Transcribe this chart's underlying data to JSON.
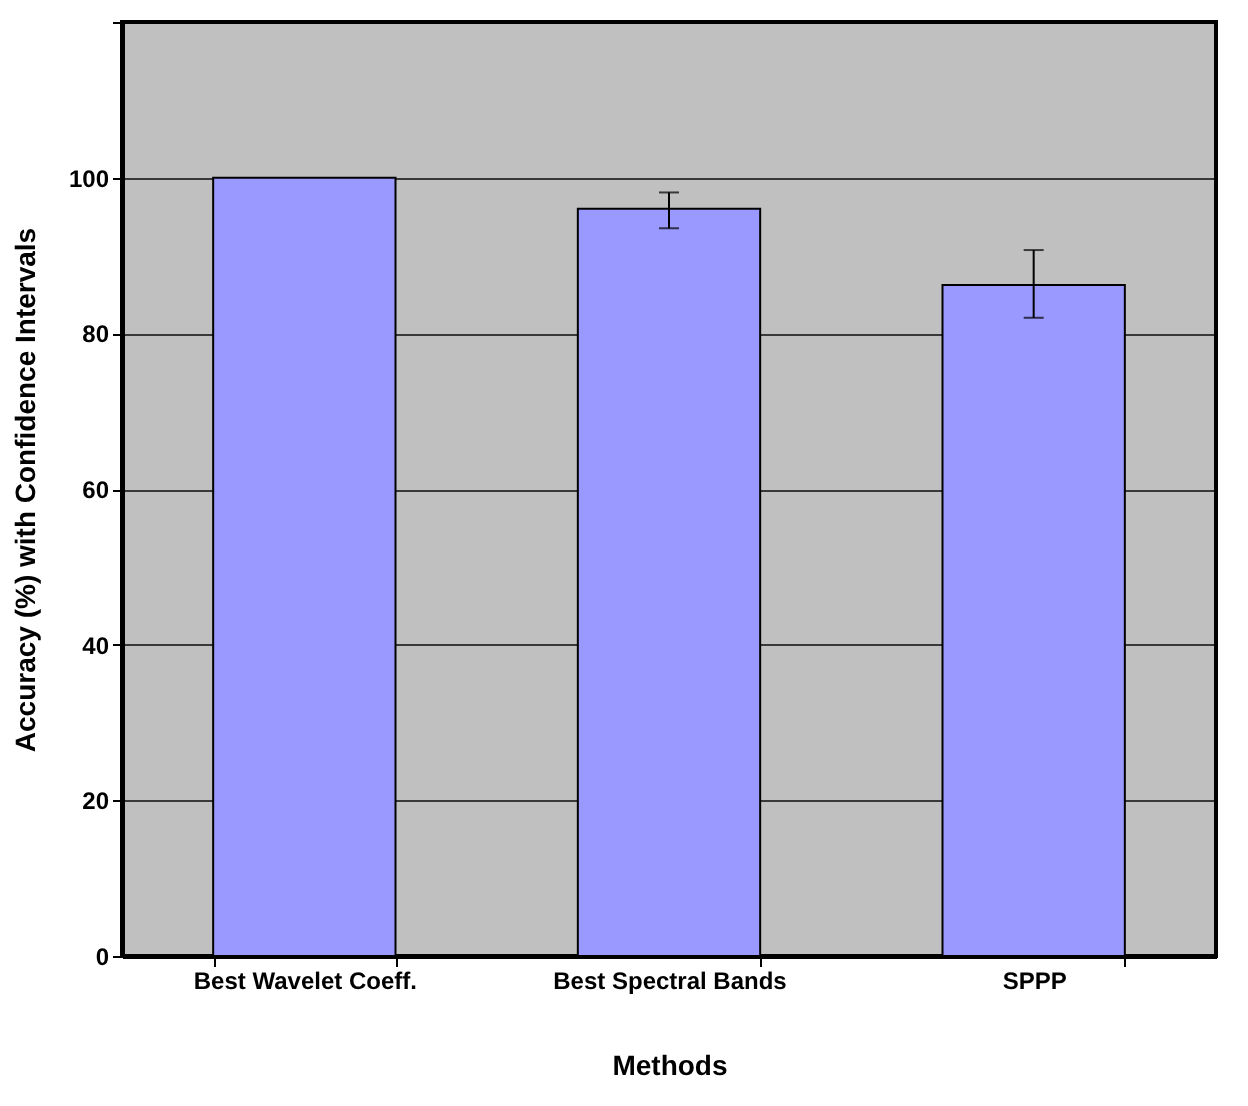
{
  "chart_data": {
    "type": "bar",
    "xlabel": "Methods",
    "ylabel": "Accuracy (%) with Confidence Intervals",
    "categories": [
      "Best Wavelet Coeff.",
      "Best Spectral Bands",
      "SPPP"
    ],
    "values": [
      100,
      96,
      86.2
    ],
    "errors": [
      null,
      [
        93.5,
        98.1
      ],
      [
        82,
        90.7
      ]
    ],
    "color": "#9999ff",
    "ylim": [
      0,
      120
    ],
    "yticks": [
      0,
      20,
      40,
      60,
      80,
      100,
      {
        "value": 120,
        "label": null
      }
    ],
    "grid": "y"
  }
}
